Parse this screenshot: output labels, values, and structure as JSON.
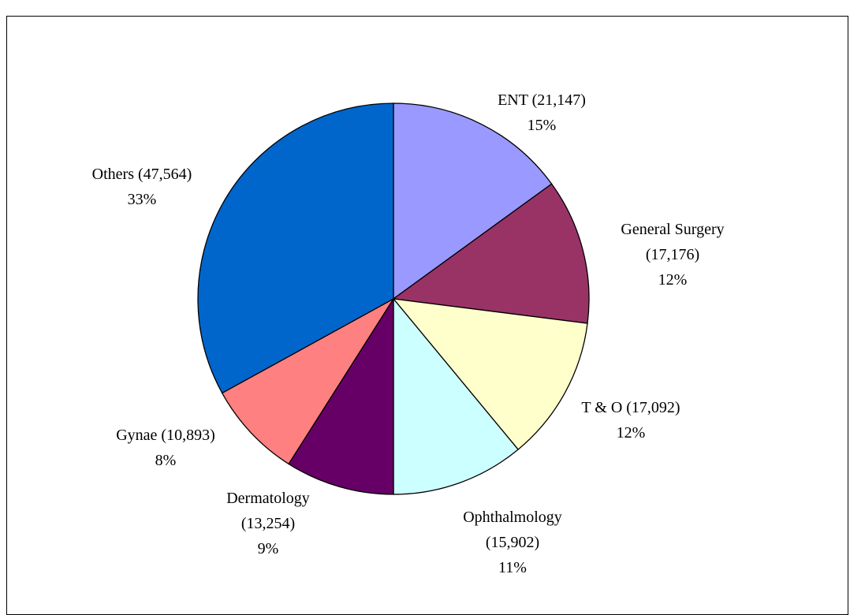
{
  "chart_data": {
    "type": "pie",
    "categories": [
      "ENT (21,147)",
      "General Surgery (17,176)",
      "T & O (17,092)",
      "Ophthalmology (15,902)",
      "Dermatology (13,254)",
      "Gynae (10,893)",
      "Others (47,564)"
    ],
    "values": [
      15,
      12,
      12,
      11,
      9,
      8,
      33
    ],
    "value_labels": [
      "15%",
      "12%",
      "12%",
      "11%",
      "9%",
      "8%",
      "33%"
    ],
    "colors": [
      "#9999ff",
      "#993366",
      "#ffffcc",
      "#ccffff",
      "#660066",
      "#ff8080",
      "#0066cc"
    ]
  }
}
